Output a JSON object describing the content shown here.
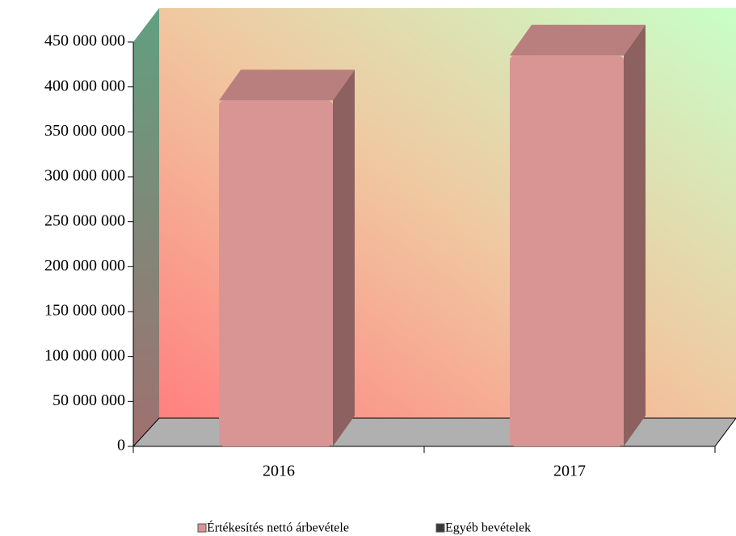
{
  "chart_data": {
    "type": "bar3d",
    "categories": [
      "2016",
      "2017"
    ],
    "series": [
      {
        "name": "Értékesítés nettó árbevétele",
        "color": "#d99594",
        "values": [
          385000000,
          435000000
        ]
      },
      {
        "name": "Egyéb bevételek",
        "color": "#3a3a3a",
        "values": [
          0,
          0
        ]
      }
    ],
    "ylim": [
      0,
      450000000
    ],
    "yticks": [
      0,
      {
        "value": 50000000,
        "label": "50 000 000"
      },
      {
        "value": 100000000,
        "label": "100 000 000"
      },
      {
        "value": 150000000,
        "label": "150 000 000"
      },
      {
        "value": 200000000,
        "label": "200 000 000"
      },
      {
        "value": 250000000,
        "label": "250 000 000"
      },
      {
        "value": 300000000,
        "label": "300 000 000"
      },
      {
        "value": 350000000,
        "label": "350 000 000"
      },
      {
        "value": 400000000,
        "label": "400 000 000"
      },
      {
        "value": 450000000,
        "label": "450 000 000"
      }
    ],
    "legend": "bottom"
  }
}
